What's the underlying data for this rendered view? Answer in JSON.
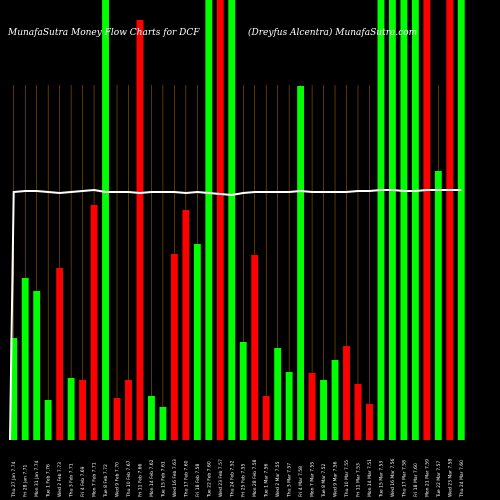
{
  "chart_data": {
    "type": "bar",
    "title": "MunafaSutra  Money Flow  Charts for DCF",
    "subtitle": "(Dreyfus Alcentra) MunafaSutra.com",
    "colors": {
      "up": "#00ff00",
      "down": "#ff0000",
      "line": "#ffffff",
      "grid": "#ff9900",
      "background": "#000000"
    },
    "ylim": [
      0,
      440
    ],
    "categories": [
      "Thu 27 Jan 7.74",
      "Fri 28 Jan 7.71",
      "Mon 31 Jan 7.74",
      "Tue 1 Feb 7.76",
      "Wed 2 Feb 7.73",
      "Thu 3 Feb 7.71",
      "Fri 4 Feb 7.69",
      "Mon 7 Feb 7.71",
      "Tue 8 Feb 7.72",
      "Wed 9 Feb 7.70",
      "Thu 10 Feb 7.67",
      "Fri 11 Feb 7.66",
      "Mon 14 Feb 7.62",
      "Tue 15 Feb 7.61",
      "Wed 16 Feb 7.63",
      "Thu 17 Feb 7.60",
      "Fri 18 Feb 7.58",
      "Tue 22 Feb 7.60",
      "Wed 23 Feb 7.57",
      "Thu 24 Feb 7.52",
      "Fri 25 Feb 7.55",
      "Mon 28 Feb 7.58",
      "Tue 1 Mar 7.56",
      "Wed 2 Mar 7.55",
      "Thu 3 Mar 7.57",
      "Fri 4 Mar 7.58",
      "Mon 7 Mar 7.55",
      "Tue 8 Mar 7.52",
      "Wed 9 Mar 7.56",
      "Thu 10 Mar 7.55",
      "Fri 11 Mar 7.53",
      "Mon 14 Mar 7.51",
      "Tue 15 Mar 7.53",
      "Wed 16 Mar 7.56",
      "Thu 17 Mar 7.58",
      "Fri 18 Mar 7.60",
      "Mon 21 Mar 7.59",
      "Tue 22 Mar 7.57",
      "Wed 23 Mar 7.58",
      "Thu 24 Mar 7.60"
    ],
    "values": [
      102,
      162,
      149,
      40,
      172,
      62,
      60,
      235,
      440,
      42,
      60,
      420,
      44,
      33,
      186,
      230,
      196,
      440,
      440,
      440,
      98,
      185,
      44,
      92,
      68,
      354,
      67,
      60,
      80,
      94,
      56,
      36,
      440,
      440,
      440,
      440,
      440,
      269,
      440,
      440
    ],
    "directions": [
      "up",
      "up",
      "up",
      "up",
      "down",
      "up",
      "down",
      "down",
      "up",
      "down",
      "down",
      "down",
      "up",
      "up",
      "down",
      "down",
      "up",
      "up",
      "down",
      "up",
      "up",
      "down",
      "down",
      "up",
      "up",
      "up",
      "down",
      "up",
      "up",
      "down",
      "down",
      "down",
      "up",
      "up",
      "up",
      "up",
      "down",
      "up",
      "down",
      "up"
    ],
    "line_values": [
      248,
      249,
      249,
      248,
      247,
      248,
      249,
      250,
      248,
      248,
      248,
      247,
      248,
      248,
      248,
      247,
      248,
      247,
      246,
      245,
      247,
      248,
      248,
      248,
      248,
      249,
      248,
      248,
      248,
      248,
      249,
      249,
      250,
      250,
      249,
      249,
      250,
      250,
      250,
      250
    ],
    "line_start": 0,
    "grid": true
  }
}
